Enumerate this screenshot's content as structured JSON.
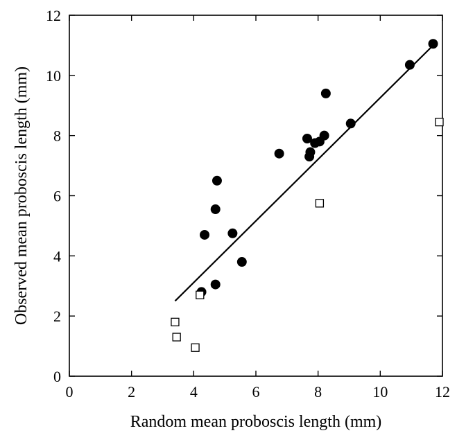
{
  "chart_data": {
    "type": "scatter",
    "title": "",
    "xlabel": "Random mean proboscis length (mm)",
    "ylabel": "Observed mean proboscis length (mm)",
    "xlim": [
      0,
      12
    ],
    "ylim": [
      0,
      12
    ],
    "xticks": [
      0,
      2,
      4,
      6,
      8,
      10,
      12
    ],
    "yticks": [
      0,
      2,
      4,
      6,
      8,
      10,
      12
    ],
    "grid": false,
    "legend": "none",
    "series": [
      {
        "marker": "filled-circle",
        "color": "#000000",
        "points": [
          {
            "x": 4.25,
            "y": 2.8
          },
          {
            "x": 4.7,
            "y": 3.05
          },
          {
            "x": 4.35,
            "y": 4.7
          },
          {
            "x": 4.7,
            "y": 5.55
          },
          {
            "x": 4.75,
            "y": 6.5
          },
          {
            "x": 5.25,
            "y": 4.75
          },
          {
            "x": 5.55,
            "y": 3.8
          },
          {
            "x": 6.75,
            "y": 7.4
          },
          {
            "x": 7.65,
            "y": 7.9
          },
          {
            "x": 7.72,
            "y": 7.3
          },
          {
            "x": 7.75,
            "y": 7.45
          },
          {
            "x": 7.9,
            "y": 7.75
          },
          {
            "x": 8.05,
            "y": 7.8
          },
          {
            "x": 8.2,
            "y": 8.0
          },
          {
            "x": 8.25,
            "y": 9.4
          },
          {
            "x": 9.05,
            "y": 8.4
          },
          {
            "x": 10.95,
            "y": 10.35
          },
          {
            "x": 11.7,
            "y": 11.05
          }
        ]
      },
      {
        "marker": "open-square",
        "color": "#000000",
        "points": [
          {
            "x": 3.4,
            "y": 1.8
          },
          {
            "x": 3.45,
            "y": 1.3
          },
          {
            "x": 4.05,
            "y": 0.95
          },
          {
            "x": 4.2,
            "y": 2.7
          },
          {
            "x": 8.05,
            "y": 5.75
          },
          {
            "x": 11.9,
            "y": 8.45
          }
        ]
      }
    ],
    "fit_line": {
      "x": [
        3.4,
        11.75
      ],
      "y": [
        2.5,
        11.05
      ],
      "color": "#000000"
    }
  }
}
